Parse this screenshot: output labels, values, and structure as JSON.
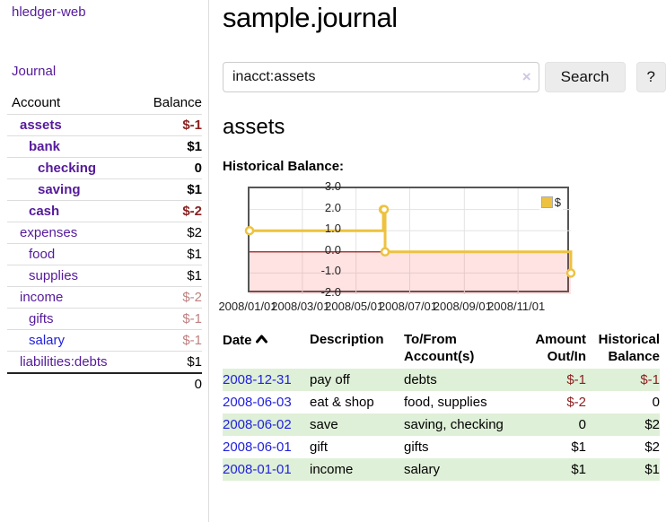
{
  "app": {
    "brand": "hledger-web",
    "nav_journal": "Journal"
  },
  "sidebar": {
    "header": {
      "account": "Account",
      "balance": "Balance"
    },
    "accounts": [
      {
        "name": "assets",
        "depth": 0,
        "bold": true,
        "balance": "$-1",
        "balance_class": "neg-strong"
      },
      {
        "name": "bank",
        "depth": 1,
        "bold": true,
        "balance": "$1",
        "balance_class": ""
      },
      {
        "name": "checking",
        "depth": 2,
        "bold": true,
        "balance": "0",
        "balance_class": ""
      },
      {
        "name": "saving",
        "depth": 2,
        "bold": true,
        "balance": "$1",
        "balance_class": ""
      },
      {
        "name": "cash",
        "depth": 1,
        "bold": true,
        "balance": "$-2",
        "balance_class": "neg-strong"
      },
      {
        "name": "expenses",
        "depth": 0,
        "bold": false,
        "balance": "$2",
        "balance_class": ""
      },
      {
        "name": "food",
        "depth": 1,
        "bold": false,
        "balance": "$1",
        "balance_class": ""
      },
      {
        "name": "supplies",
        "depth": 1,
        "bold": false,
        "balance": "$1",
        "balance_class": ""
      },
      {
        "name": "income",
        "depth": 0,
        "bold": false,
        "balance": "$-2",
        "balance_class": "neg-light"
      },
      {
        "name": "gifts",
        "depth": 1,
        "bold": false,
        "balance": "$-1",
        "balance_class": "neg-light"
      },
      {
        "name": "salary",
        "depth": 1,
        "bold": false,
        "balance": "$-1",
        "balance_class": "neg-light",
        "blue": true
      },
      {
        "name": "liabilities:debts",
        "depth": 0,
        "bold": false,
        "balance": "$1",
        "balance_class": ""
      }
    ],
    "total": "0"
  },
  "header": {
    "title": "sample.journal"
  },
  "search": {
    "query": "inacct:assets",
    "clear_icon_glyph": "×",
    "clear_icon_name": "clear-icon",
    "button_label": "Search",
    "help_label": "?"
  },
  "account_page": {
    "title": "assets",
    "chart_label": "Historical Balance:"
  },
  "chart_data": {
    "type": "line",
    "style": "step",
    "title": "Historical Balance:",
    "xmin": "2008-01-01",
    "xmax": "2008-12-31",
    "ylim": [
      -2,
      3
    ],
    "grid": true,
    "legend_position": "top-right",
    "series": [
      {
        "name": "$",
        "color": "#edc240",
        "points": [
          [
            "2008-01-01",
            1
          ],
          [
            "2008-06-01",
            2
          ],
          [
            "2008-06-02",
            2
          ],
          [
            "2008-06-03",
            0
          ],
          [
            "2008-12-31",
            -1
          ]
        ]
      }
    ],
    "x_ticks": [
      {
        "date": "2008-01-01",
        "label": "2008/01/01"
      },
      {
        "date": "2008-03-01",
        "label": "2008/03/01"
      },
      {
        "date": "2008-05-01",
        "label": "2008/05/01"
      },
      {
        "date": "2008-07-01",
        "label": "2008/07/01"
      },
      {
        "date": "2008-09-01",
        "label": "2008/09/01"
      },
      {
        "date": "2008-11-01",
        "label": "2008/11/01"
      }
    ],
    "y_ticks": [
      {
        "value": 3,
        "label": "3.0"
      },
      {
        "value": 2,
        "label": "2.0"
      },
      {
        "value": 1,
        "label": "1.0"
      },
      {
        "value": 0,
        "label": "0.0"
      },
      {
        "value": -1,
        "label": "-1.0"
      },
      {
        "value": -2,
        "label": "-2.0"
      }
    ],
    "zero_line_color": "#8b0000",
    "negative_fill_color": "rgba(255,60,60,0.14)",
    "grid_color": "#e3e3e3"
  },
  "register": {
    "columns": {
      "date": "Date",
      "description": "Description",
      "accounts_line1": "To/From",
      "accounts_line2": "Account(s)",
      "amount_line1": "Amount",
      "amount_line2": "Out/In",
      "balance_line1": "Historical",
      "balance_line2": "Balance"
    },
    "sort_icon_name": "chevron-up-sort-icon",
    "rows": [
      {
        "date": "2008-12-31",
        "description": "pay off",
        "accounts": "debts",
        "amount": "$-1",
        "amount_neg": true,
        "balance": "$-1",
        "balance_neg": true,
        "shaded": true
      },
      {
        "date": "2008-06-03",
        "description": "eat & shop",
        "accounts": "food, supplies",
        "amount": "$-2",
        "amount_neg": true,
        "balance": "0",
        "balance_neg": false,
        "shaded": false
      },
      {
        "date": "2008-06-02",
        "description": "save",
        "accounts": "saving, checking",
        "amount": "0",
        "amount_neg": false,
        "balance": "$2",
        "balance_neg": false,
        "shaded": true
      },
      {
        "date": "2008-06-01",
        "description": "gift",
        "accounts": "gifts",
        "amount": "$1",
        "amount_neg": false,
        "balance": "$2",
        "balance_neg": false,
        "shaded": false
      },
      {
        "date": "2008-01-01",
        "description": "income",
        "accounts": "salary",
        "amount": "$1",
        "amount_neg": false,
        "balance": "$1",
        "balance_neg": false,
        "shaded": true
      }
    ]
  }
}
